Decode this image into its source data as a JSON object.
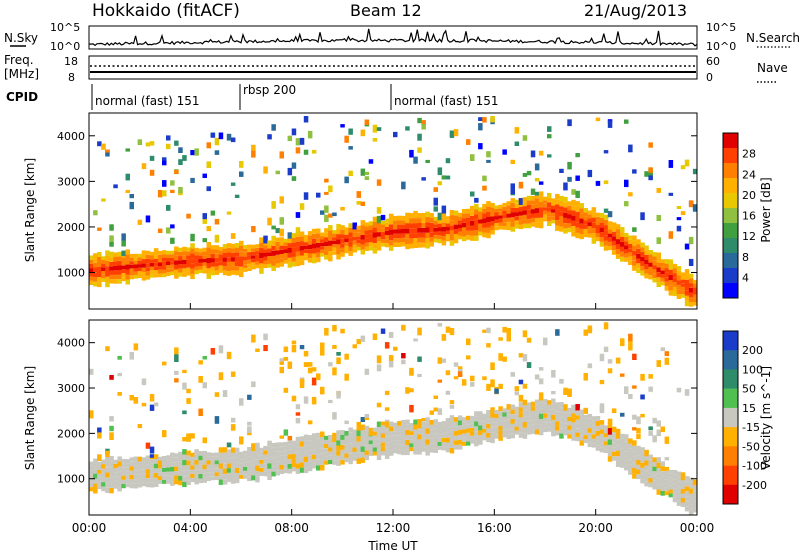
{
  "header": {
    "station": "Hokkaido (fitACF)",
    "beam": "Beam 12",
    "date": "21/Aug/2013"
  },
  "top_panels": {
    "nsky_label": "N.Sky",
    "nsky_ticks": [
      "10^5",
      "10^0"
    ],
    "nsearch_label": "N.Search",
    "nsearch_ticks": [
      "10^5",
      "10^0"
    ],
    "freq_label_1": "Freq.",
    "freq_label_2": "[MHz]",
    "freq_ticks": [
      "18",
      "8"
    ],
    "nave_label": "Nave",
    "nave_ticks": [
      "60",
      "0"
    ],
    "cpid_label": "CPID",
    "cpid_segments": [
      {
        "label": "normal (fast) 151",
        "start_hour": 0,
        "end_hour": 6
      },
      {
        "label": "rbsp 200",
        "start_hour": 6,
        "end_hour": 12
      },
      {
        "label": "normal (fast) 151",
        "start_hour": 12,
        "end_hour": 24
      }
    ]
  },
  "chart_data": [
    {
      "type": "heatmap",
      "name": "power-panel",
      "ylabel": "Slant Range [km]",
      "y_ticks": [
        1000,
        2000,
        3000,
        4000
      ],
      "ylim": [
        200,
        4500
      ],
      "xlim": [
        0,
        24
      ],
      "colorbar_label": "Power [dB]",
      "colorbar_ticks": [
        "28",
        "24",
        "20",
        "16",
        "12",
        "8",
        "4"
      ],
      "colorbar_colors": [
        "#e00000",
        "#ff4000",
        "#ff8000",
        "#ffb000",
        "#e8c800",
        "#90c040",
        "#40a040",
        "#2e8c6a",
        "#2a6a9a",
        "#1a3cc8",
        "#0000ff"
      ],
      "echo_bands_km": [
        {
          "hours": [
            0,
            2,
            4,
            6,
            8,
            10,
            12,
            14,
            16,
            18,
            20,
            22,
            24
          ],
          "slant_km": [
            1050,
            1150,
            1250,
            1300,
            1500,
            1700,
            1900,
            1950,
            2200,
            2400,
            2000,
            1200,
            500
          ]
        }
      ]
    },
    {
      "type": "heatmap",
      "name": "velocity-panel",
      "ylabel": "Slant Range [km]",
      "y_ticks": [
        1000,
        2000,
        3000,
        4000
      ],
      "ylim": [
        200,
        4500
      ],
      "xlim": [
        0,
        24
      ],
      "xlabel": "Time UT",
      "x_ticks": [
        "00:00",
        "04:00",
        "08:00",
        "12:00",
        "16:00",
        "20:00",
        "00:00"
      ],
      "colorbar_label": "Velocity [m s^-1]",
      "colorbar_ticks": [
        "200",
        "100",
        "50",
        "15",
        "-15",
        "-50",
        "-100",
        "-200"
      ],
      "colorbar_colors": [
        "#1a3cc8",
        "#2a6a9a",
        "#2e8c6a",
        "#50c050",
        "#c8c8c0",
        "#ffb000",
        "#ff8000",
        "#ff4000",
        "#e00000"
      ]
    }
  ],
  "colors": {
    "frame": "#000000",
    "ground_scatter": "#c8c8c0"
  }
}
